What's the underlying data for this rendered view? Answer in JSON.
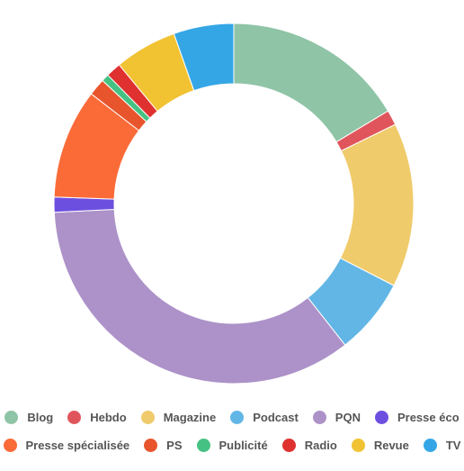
{
  "chart_data": {
    "type": "pie",
    "variant": "donut",
    "title": "",
    "legend_position": "bottom",
    "categories": [
      "Blog",
      "Hebdo",
      "Magazine",
      "Podcast",
      "PQN",
      "Presse éco",
      "Presse spécialisée",
      "PS",
      "Publicité",
      "Radio",
      "Revue",
      "TV"
    ],
    "values": [
      17,
      1.4,
      15.3,
      7.1,
      36.1,
      1.4,
      10.2,
      1.6,
      0.7,
      1.4,
      5.8,
      5.6
    ],
    "colors": [
      "#8fc4a6",
      "#e0555b",
      "#f0cb6b",
      "#62b6e6",
      "#ac92c8",
      "#6d4fe0",
      "#fb6b38",
      "#e8552c",
      "#45c283",
      "#e03131",
      "#f1c232",
      "#34a6e6"
    ],
    "legend_rows": [
      [
        "Blog",
        "Hebdo",
        "Magazine",
        "Podcast",
        "PQN",
        "Presse éco"
      ],
      [
        "Presse spécialisée",
        "PS",
        "Publicité",
        "Radio",
        "Revue",
        "TV"
      ]
    ]
  }
}
